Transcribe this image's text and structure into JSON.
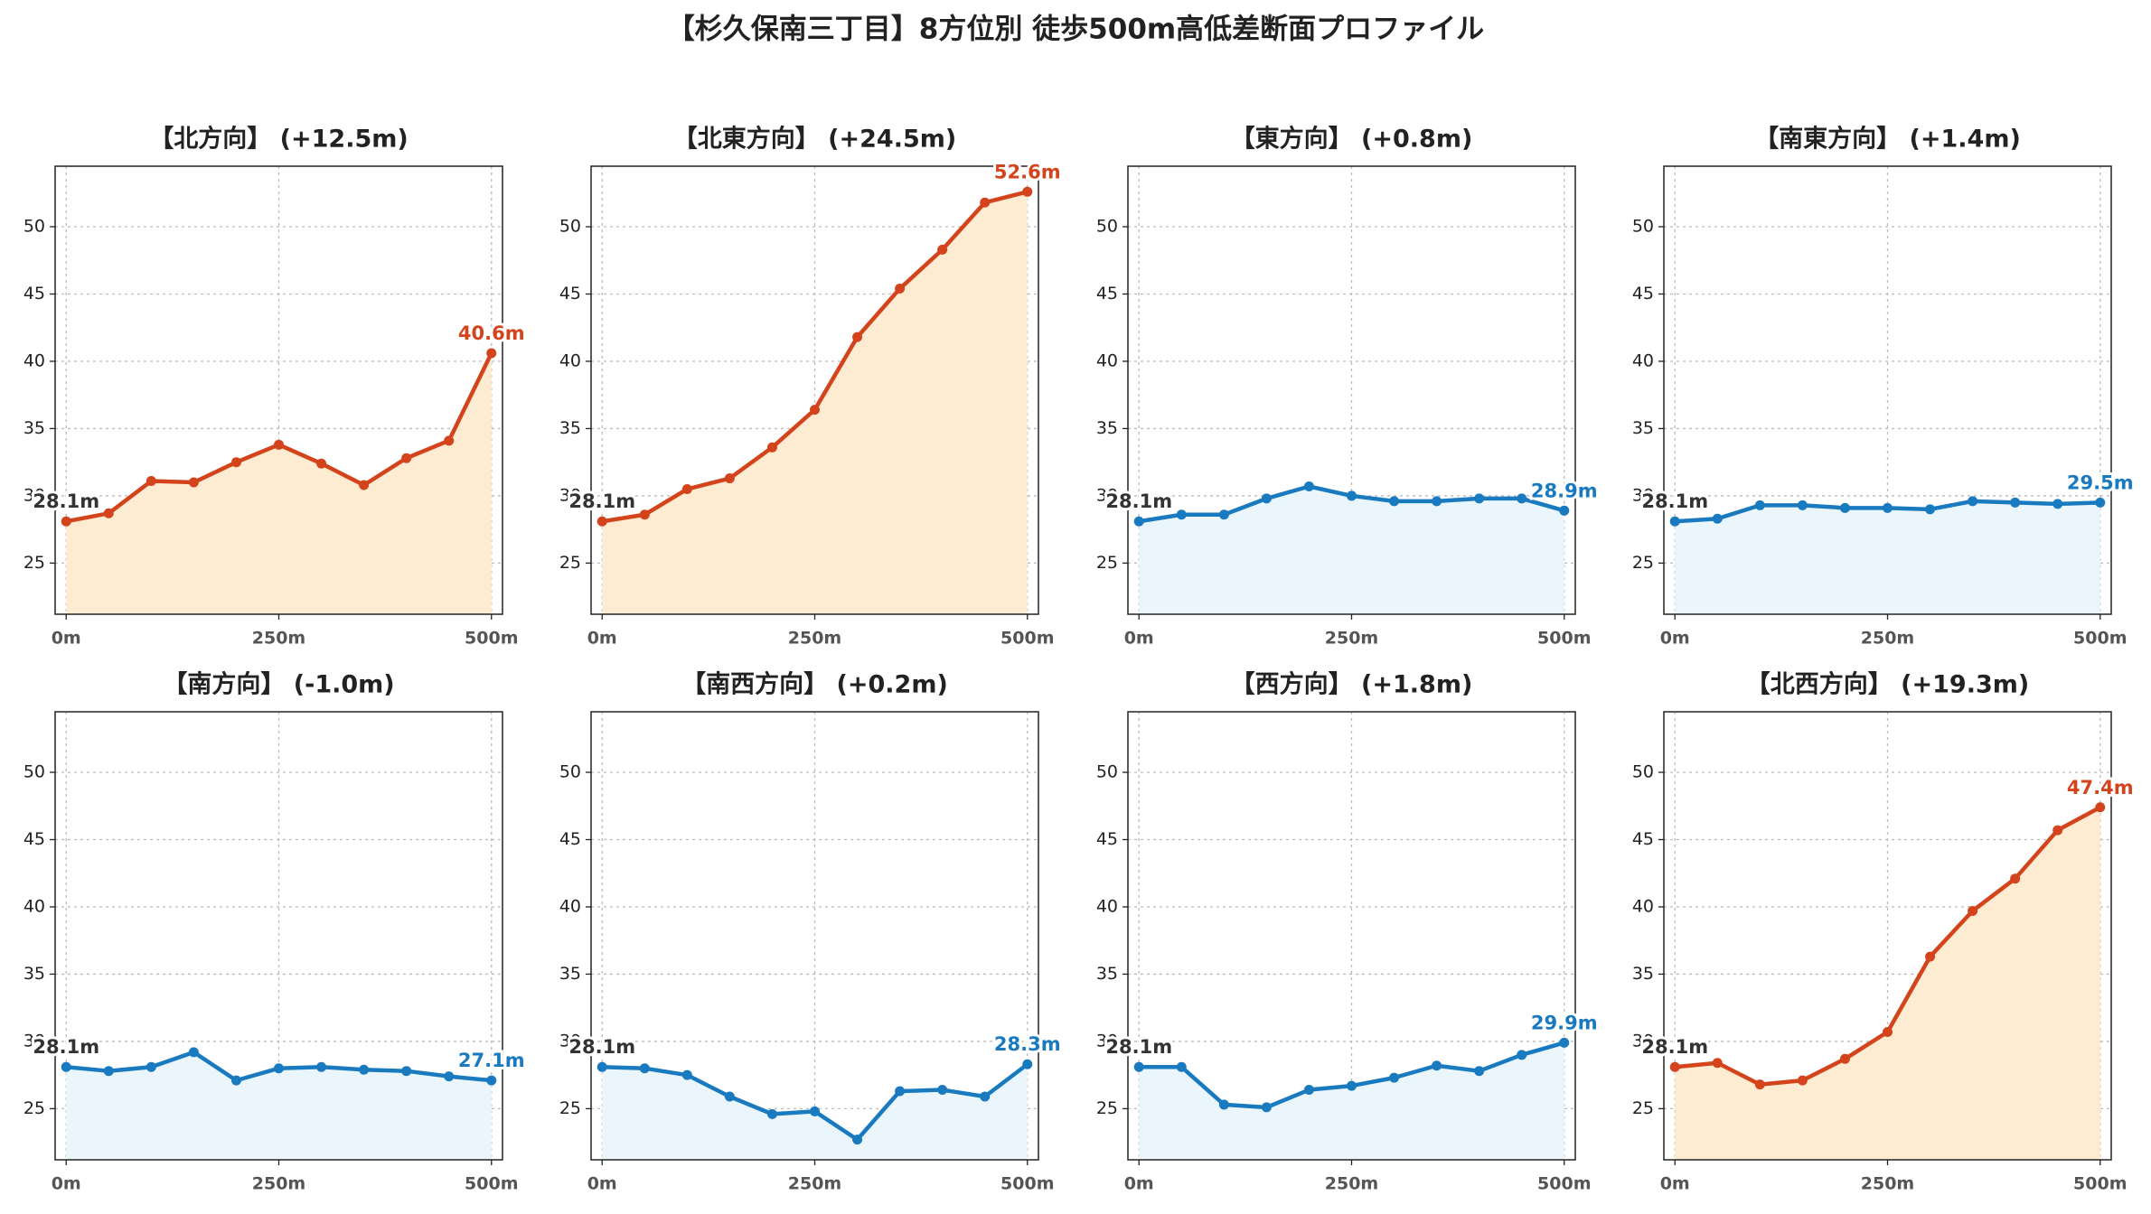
{
  "title": "【杉久保南三丁目】8方位別 徒歩500m高低差断面プロファイル",
  "chart_data": [
    {
      "type": "line",
      "title": "【北方向】 (+12.5m)",
      "x": [
        0,
        50,
        100,
        150,
        200,
        250,
        300,
        350,
        400,
        450,
        500
      ],
      "values": [
        28.1,
        28.7,
        31.1,
        31.0,
        32.5,
        33.8,
        32.4,
        30.8,
        32.8,
        34.1,
        40.6
      ],
      "value_labels": [
        "28.1m",
        null,
        null,
        null,
        null,
        null,
        null,
        null,
        null,
        null,
        "40.6m"
      ],
      "color": "#d4441c",
      "fill_color": "#fdebd2",
      "xlim": [
        -13,
        513
      ],
      "ylim": [
        21.2,
        54.5
      ],
      "xticks": [
        {
          "value": 0,
          "label": "0m"
        },
        {
          "value": 250,
          "label": "250m"
        },
        {
          "value": 500,
          "label": "500m"
        }
      ],
      "yticks": [
        25,
        30,
        35,
        40,
        45,
        50
      ],
      "grid": true
    },
    {
      "type": "line",
      "title": "【北東方向】 (+24.5m)",
      "x": [
        0,
        50,
        100,
        150,
        200,
        250,
        300,
        350,
        400,
        450,
        500
      ],
      "values": [
        28.1,
        28.6,
        30.5,
        31.3,
        33.6,
        36.4,
        41.8,
        45.4,
        48.3,
        51.8,
        52.6
      ],
      "value_labels": [
        "28.1m",
        null,
        null,
        null,
        null,
        null,
        null,
        null,
        null,
        null,
        "52.6m"
      ],
      "color": "#d4441c",
      "fill_color": "#fdebd2",
      "xlim": [
        -13,
        513
      ],
      "ylim": [
        21.2,
        54.5
      ],
      "xticks": [
        {
          "value": 0,
          "label": "0m"
        },
        {
          "value": 250,
          "label": "250m"
        },
        {
          "value": 500,
          "label": "500m"
        }
      ],
      "yticks": [
        25,
        30,
        35,
        40,
        45,
        50
      ],
      "grid": true
    },
    {
      "type": "line",
      "title": "【東方向】 (+0.8m)",
      "x": [
        0,
        50,
        100,
        150,
        200,
        250,
        300,
        350,
        400,
        450,
        500
      ],
      "values": [
        28.1,
        28.6,
        28.6,
        29.8,
        30.7,
        30.0,
        29.6,
        29.6,
        29.8,
        29.8,
        28.9
      ],
      "value_labels": [
        "28.1m",
        null,
        null,
        null,
        null,
        null,
        null,
        null,
        null,
        null,
        "28.9m"
      ],
      "color": "#1a7abf",
      "fill_color": "#eaf6fc",
      "xlim": [
        -13,
        513
      ],
      "ylim": [
        21.2,
        54.5
      ],
      "xticks": [
        {
          "value": 0,
          "label": "0m"
        },
        {
          "value": 250,
          "label": "250m"
        },
        {
          "value": 500,
          "label": "500m"
        }
      ],
      "yticks": [
        25,
        30,
        35,
        40,
        45,
        50
      ],
      "grid": true
    },
    {
      "type": "line",
      "title": "【南東方向】 (+1.4m)",
      "x": [
        0,
        50,
        100,
        150,
        200,
        250,
        300,
        350,
        400,
        450,
        500
      ],
      "values": [
        28.1,
        28.3,
        29.3,
        29.3,
        29.1,
        29.1,
        29.0,
        29.6,
        29.5,
        29.4,
        29.5
      ],
      "value_labels": [
        "28.1m",
        null,
        null,
        null,
        null,
        null,
        null,
        null,
        null,
        null,
        "29.5m"
      ],
      "color": "#1a7abf",
      "fill_color": "#eaf6fc",
      "xlim": [
        -13,
        513
      ],
      "ylim": [
        21.2,
        54.5
      ],
      "xticks": [
        {
          "value": 0,
          "label": "0m"
        },
        {
          "value": 250,
          "label": "250m"
        },
        {
          "value": 500,
          "label": "500m"
        }
      ],
      "yticks": [
        25,
        30,
        35,
        40,
        45,
        50
      ],
      "grid": true
    },
    {
      "type": "line",
      "title": "【南方向】 (-1.0m)",
      "x": [
        0,
        50,
        100,
        150,
        200,
        250,
        300,
        350,
        400,
        450,
        500
      ],
      "values": [
        28.1,
        27.8,
        28.1,
        29.2,
        27.1,
        28.0,
        28.1,
        27.9,
        27.8,
        27.4,
        27.1
      ],
      "value_labels": [
        "28.1m",
        null,
        null,
        null,
        null,
        null,
        null,
        null,
        null,
        null,
        "27.1m"
      ],
      "color": "#1a7abf",
      "fill_color": "#eaf6fc",
      "xlim": [
        -13,
        513
      ],
      "ylim": [
        21.2,
        54.5
      ],
      "xticks": [
        {
          "value": 0,
          "label": "0m"
        },
        {
          "value": 250,
          "label": "250m"
        },
        {
          "value": 500,
          "label": "500m"
        }
      ],
      "yticks": [
        25,
        30,
        35,
        40,
        45,
        50
      ],
      "grid": true
    },
    {
      "type": "line",
      "title": "【南西方向】 (+0.2m)",
      "x": [
        0,
        50,
        100,
        150,
        200,
        250,
        300,
        350,
        400,
        450,
        500
      ],
      "values": [
        28.1,
        28.0,
        27.5,
        25.9,
        24.6,
        24.8,
        22.7,
        26.3,
        26.4,
        25.9,
        28.3
      ],
      "value_labels": [
        "28.1m",
        null,
        null,
        null,
        null,
        null,
        null,
        null,
        null,
        null,
        "28.3m"
      ],
      "color": "#1a7abf",
      "fill_color": "#eaf6fc",
      "xlim": [
        -13,
        513
      ],
      "ylim": [
        21.2,
        54.5
      ],
      "xticks": [
        {
          "value": 0,
          "label": "0m"
        },
        {
          "value": 250,
          "label": "250m"
        },
        {
          "value": 500,
          "label": "500m"
        }
      ],
      "yticks": [
        25,
        30,
        35,
        40,
        45,
        50
      ],
      "grid": true
    },
    {
      "type": "line",
      "title": "【西方向】 (+1.8m)",
      "x": [
        0,
        50,
        100,
        150,
        200,
        250,
        300,
        350,
        400,
        450,
        500
      ],
      "values": [
        28.1,
        28.1,
        25.3,
        25.1,
        26.4,
        26.7,
        27.3,
        28.2,
        27.8,
        29.0,
        29.9
      ],
      "value_labels": [
        "28.1m",
        null,
        null,
        null,
        null,
        null,
        null,
        null,
        null,
        null,
        "29.9m"
      ],
      "color": "#1a7abf",
      "fill_color": "#eaf6fc",
      "xlim": [
        -13,
        513
      ],
      "ylim": [
        21.2,
        54.5
      ],
      "xticks": [
        {
          "value": 0,
          "label": "0m"
        },
        {
          "value": 250,
          "label": "250m"
        },
        {
          "value": 500,
          "label": "500m"
        }
      ],
      "yticks": [
        25,
        30,
        35,
        40,
        45,
        50
      ],
      "grid": true
    },
    {
      "type": "line",
      "title": "【北西方向】 (+19.3m)",
      "x": [
        0,
        50,
        100,
        150,
        200,
        250,
        300,
        350,
        400,
        450,
        500
      ],
      "values": [
        28.1,
        28.4,
        26.8,
        27.1,
        28.7,
        30.7,
        36.3,
        39.7,
        42.1,
        45.7,
        47.4
      ],
      "value_labels": [
        "28.1m",
        null,
        null,
        null,
        null,
        null,
        null,
        null,
        null,
        null,
        "47.4m"
      ],
      "color": "#d4441c",
      "fill_color": "#fdebd2",
      "xlim": [
        -13,
        513
      ],
      "ylim": [
        21.2,
        54.5
      ],
      "xticks": [
        {
          "value": 0,
          "label": "0m"
        },
        {
          "value": 250,
          "label": "250m"
        },
        {
          "value": 500,
          "label": "500m"
        }
      ],
      "yticks": [
        25,
        30,
        35,
        40,
        45,
        50
      ],
      "grid": true
    }
  ]
}
